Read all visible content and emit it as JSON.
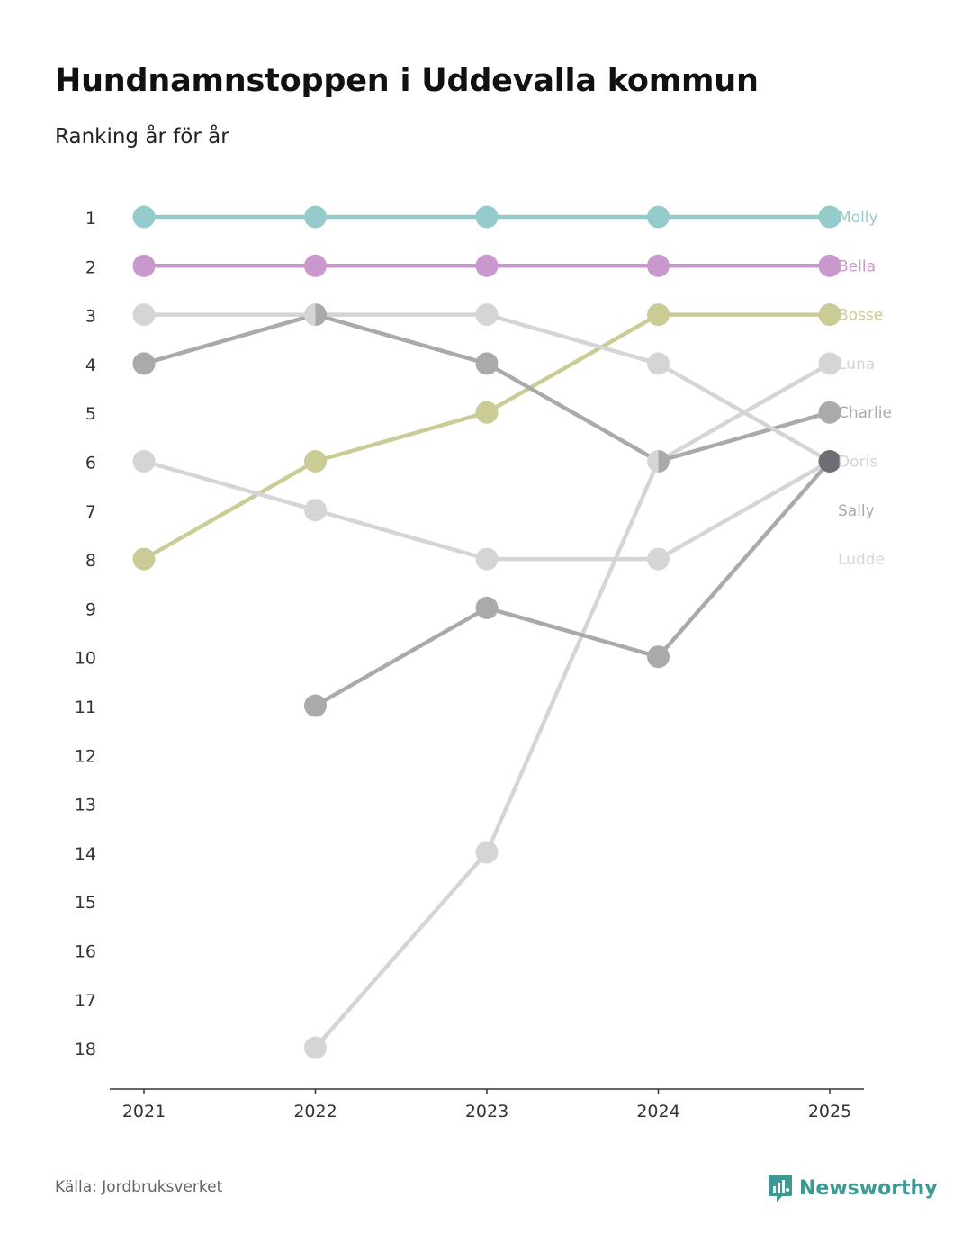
{
  "title": "Hundnamnstoppen i Uddevalla kommun",
  "subtitle": "Ranking år för år",
  "source": "Källa: Jordbruksverket",
  "brand": {
    "name": "Newsworthy",
    "icon": "newsworthy-logo-icon",
    "color": "#3d9a93"
  },
  "chart_data": {
    "type": "line",
    "title": "Hundnamnstoppen i Uddevalla kommun",
    "subtitle": "Ranking år för år",
    "xlabel": "",
    "ylabel": "",
    "x": [
      "2021",
      "2022",
      "2023",
      "2024",
      "2025"
    ],
    "y_ticks": [
      "1",
      "2",
      "3",
      "4",
      "5",
      "6",
      "7",
      "8",
      "9",
      "10",
      "11",
      "12",
      "13",
      "14",
      "15",
      "16",
      "17",
      "18"
    ],
    "ylim": [
      1,
      18
    ],
    "y_inverted": true,
    "grid": false,
    "legend": "direct labels at right end of lines",
    "series": [
      {
        "name": "Molly",
        "color": "#96cbcb",
        "values": [
          1,
          1,
          1,
          1,
          1
        ]
      },
      {
        "name": "Bella",
        "color": "#c998cc",
        "values": [
          2,
          2,
          2,
          2,
          2
        ]
      },
      {
        "name": "Bosse",
        "color": "#cbcb96",
        "values": [
          8,
          6,
          5,
          3,
          3
        ]
      },
      {
        "name": "Luna",
        "color": "#d5d5d5",
        "values": [
          null,
          18,
          14,
          6,
          4
        ]
      },
      {
        "name": "Charlie",
        "color": "#aaaaaa",
        "values": [
          4,
          3,
          4,
          6,
          5
        ]
      },
      {
        "name": "Doris",
        "color": "#d5d5d5",
        "values": [
          3,
          3,
          3,
          4,
          6
        ]
      },
      {
        "name": "Sally",
        "color": "#aaaaaa",
        "values": [
          null,
          11,
          9,
          10,
          6
        ]
      },
      {
        "name": "Ludde",
        "color": "#d5d5d5",
        "values": [
          6,
          7,
          8,
          8,
          6
        ]
      }
    ],
    "overlap_point_color": "#6d6d73"
  }
}
